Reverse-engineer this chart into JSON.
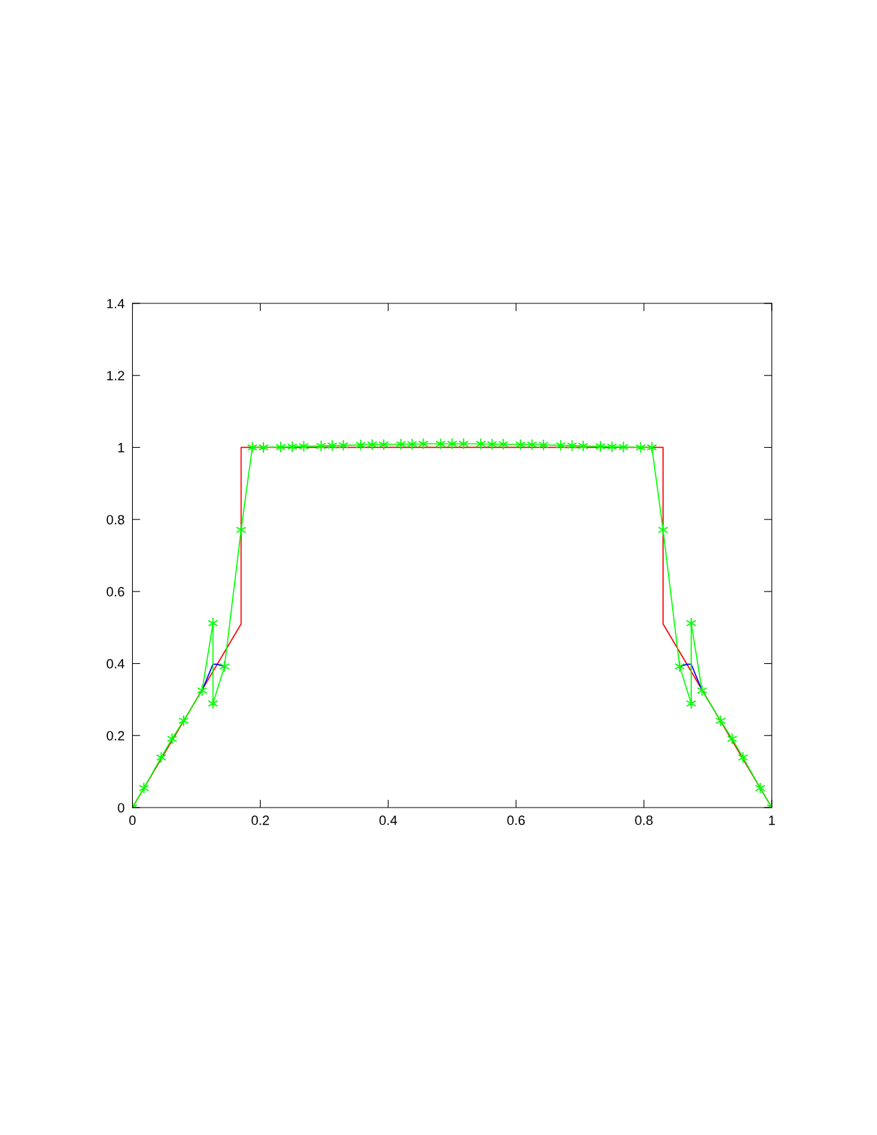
{
  "chart_data": {
    "type": "line",
    "xlim": [
      0,
      1
    ],
    "ylim": [
      0,
      1.4
    ],
    "xticks": [
      0,
      0.2,
      0.4,
      0.6,
      0.8,
      1
    ],
    "yticks": [
      0,
      0.2,
      0.4,
      0.6,
      0.8,
      1,
      1.2,
      1.4
    ],
    "grid": false,
    "line_style": "solid",
    "series": [
      {
        "color": "#ff0000",
        "marker": "none",
        "x": [
          0,
          0.17,
          0.17,
          0.83,
          0.83,
          1
        ],
        "values": [
          0,
          0.51,
          1.0,
          1.0,
          0.51,
          0
        ]
      },
      {
        "color": "#0000ff",
        "marker": "none",
        "x": [
          0.109,
          0.126,
          0.132,
          0.144,
          0.5,
          0.856,
          0.868,
          0.874,
          0.891
        ],
        "values": [
          0.325,
          0.398,
          0.398,
          0.392,
          null,
          0.392,
          0.398,
          0.398,
          0.325
        ]
      },
      {
        "color": "#00ff00",
        "marker": "cross",
        "x": [
          0,
          0.018,
          0.045,
          0.062,
          0.08,
          0.109,
          0.126,
          0.126,
          0.144,
          0.17,
          0.1875,
          0.205,
          0.232,
          0.25,
          0.268,
          0.295,
          0.3125,
          0.33,
          0.357,
          0.375,
          0.393,
          0.42,
          0.4375,
          0.455,
          0.482,
          0.5,
          0.518,
          0.545,
          0.5625,
          0.58,
          0.607,
          0.625,
          0.643,
          0.67,
          0.6875,
          0.705,
          0.732,
          0.75,
          0.768,
          0.795,
          0.8125,
          0.83,
          0.856,
          0.874,
          0.874,
          0.891,
          0.92,
          0.938,
          0.955,
          0.982,
          1
        ],
        "values": [
          0,
          0.054,
          0.139,
          0.191,
          0.241,
          0.325,
          0.512,
          0.289,
          0.392,
          0.771,
          1.0,
          1.0,
          1.001,
          1.002,
          1.003,
          1.004,
          1.005,
          1.006,
          1.007,
          1.008,
          1.008,
          1.009,
          1.009,
          1.01,
          1.01,
          1.01,
          1.01,
          1.01,
          1.009,
          1.009,
          1.008,
          1.008,
          1.007,
          1.006,
          1.005,
          1.004,
          1.003,
          1.002,
          1.001,
          1.0,
          1.0,
          0.771,
          0.392,
          0.289,
          0.512,
          0.325,
          0.241,
          0.191,
          0.139,
          0.054,
          0
        ]
      }
    ]
  }
}
